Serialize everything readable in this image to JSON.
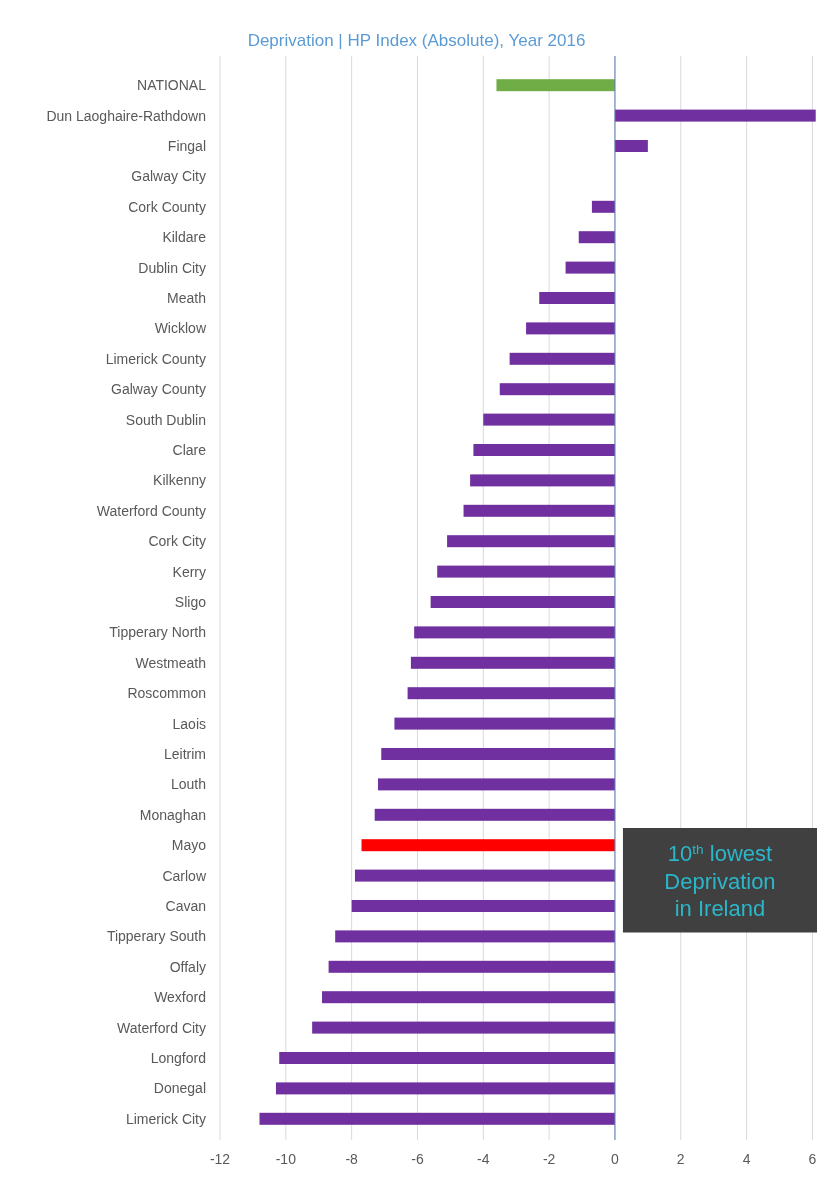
{
  "chart_data": {
    "type": "bar",
    "orientation": "horizontal",
    "title": "Deprivation | HP Index (Absolute), Year 2016",
    "categories": [
      "NATIONAL",
      "Dun Laoghaire-Rathdown",
      "Fingal",
      "Galway City",
      "Cork County",
      "Kildare",
      "Dublin City",
      "Meath",
      "Wicklow",
      "Limerick County",
      "Galway County",
      "South Dublin",
      "Clare",
      "Kilkenny",
      "Waterford County",
      "Cork City",
      "Kerry",
      "Sligo",
      "Tipperary North",
      "Westmeath",
      "Roscommon",
      "Laois",
      "Leitrim",
      "Louth",
      "Monaghan",
      "Mayo",
      "Carlow",
      "Cavan",
      "Tipperary South",
      "Offaly",
      "Wexford",
      "Waterford City",
      "Longford",
      "Donegal",
      "Limerick City"
    ],
    "values": [
      -3.6,
      6.1,
      1.0,
      0,
      -0.7,
      -1.1,
      -1.5,
      -2.3,
      -2.7,
      -3.2,
      -3.5,
      -4.0,
      -4.3,
      -4.4,
      -4.6,
      -5.1,
      -5.4,
      -5.6,
      -6.1,
      -6.2,
      -6.3,
      -6.7,
      -7.1,
      -7.2,
      -7.3,
      -7.7,
      -7.9,
      -8.0,
      -8.5,
      -8.7,
      -8.9,
      -9.2,
      -10.2,
      -10.3,
      -10.8
    ],
    "colors": [
      "#70ad47",
      "#7030a0",
      "#7030a0",
      "#7030a0",
      "#7030a0",
      "#7030a0",
      "#7030a0",
      "#7030a0",
      "#7030a0",
      "#7030a0",
      "#7030a0",
      "#7030a0",
      "#7030a0",
      "#7030a0",
      "#7030a0",
      "#7030a0",
      "#7030a0",
      "#7030a0",
      "#7030a0",
      "#7030a0",
      "#7030a0",
      "#7030a0",
      "#7030a0",
      "#7030a0",
      "#7030a0",
      "#ff0000",
      "#7030a0",
      "#7030a0",
      "#7030a0",
      "#7030a0",
      "#7030a0",
      "#7030a0",
      "#7030a0",
      "#7030a0",
      "#7030a0"
    ],
    "xlim": [
      -12,
      6.2
    ],
    "xticks": [
      -12,
      -10,
      -8,
      -6,
      -4,
      -2,
      0,
      2,
      4,
      6
    ],
    "grid": "x",
    "ref_lines": [
      {
        "axis": "x",
        "value": 0,
        "color": "#5b7fb5"
      }
    ],
    "annotations": [
      "10$^{th}$ lowest\nDeprivation\nin Ireland"
    ]
  }
}
